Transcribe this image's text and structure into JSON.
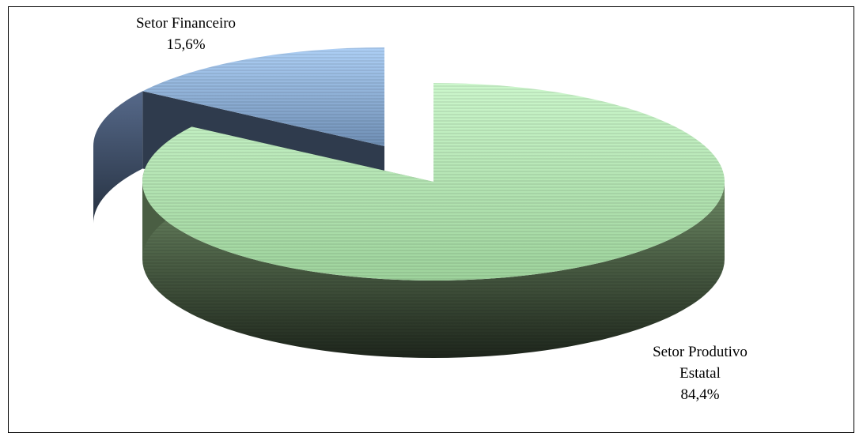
{
  "chart_data": {
    "type": "pie",
    "style": "3d-exploded",
    "title": "",
    "slices": [
      {
        "name": "Setor Financeiro",
        "value": 15.6,
        "label_lines": [
          "Setor Financeiro",
          "15,6%"
        ],
        "color_top": "#a8c8ef",
        "color_side": "#3c4f6a"
      },
      {
        "name": "Setor Produtivo Estatal",
        "value": 84.4,
        "label_lines": [
          "Setor Produtivo",
          "Estatal",
          "84,4%"
        ],
        "color_top": "#c4f0c4",
        "color_side": "#3a4a35"
      }
    ],
    "legend": "none"
  }
}
